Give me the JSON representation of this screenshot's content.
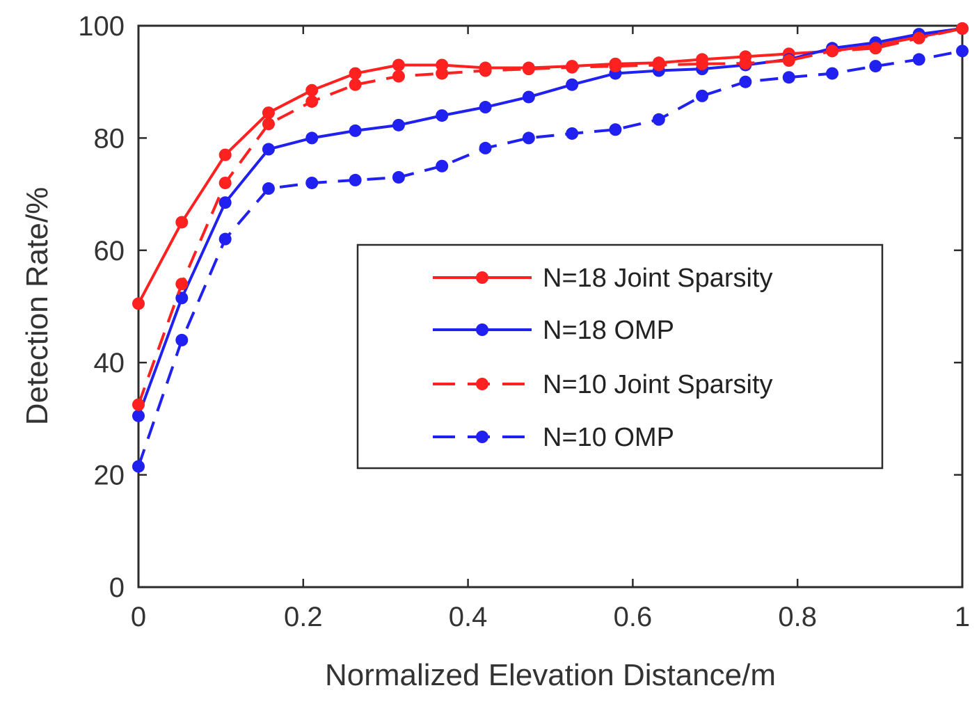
{
  "chart_data": {
    "type": "line",
    "xlabel": "Normalized Elevation Distance/m",
    "ylabel": "Detection Rate/%",
    "xlim": [
      0,
      1
    ],
    "ylim": [
      0,
      100
    ],
    "xticks": [
      "0",
      "0.2",
      "0.4",
      "0.6",
      "0.8",
      "1"
    ],
    "yticks": [
      "0",
      "20",
      "40",
      "60",
      "80",
      "100"
    ],
    "grid": false,
    "legend_position": "center-right",
    "x": [
      0,
      0.0526,
      0.1053,
      0.1579,
      0.2105,
      0.2632,
      0.3158,
      0.3684,
      0.4211,
      0.4737,
      0.5263,
      0.5789,
      0.6316,
      0.6842,
      0.7368,
      0.7895,
      0.8421,
      0.8947,
      0.9474,
      1.0
    ],
    "series": [
      {
        "name": "N=18 Joint Sparsity",
        "color": "#ff2020",
        "dashed": false,
        "values": [
          50.5,
          65,
          77,
          84.5,
          88.5,
          91.5,
          93,
          93,
          92.5,
          92.5,
          92.8,
          93.2,
          93.4,
          94,
          94.5,
          95,
          95.5,
          96.5,
          98,
          99.5
        ]
      },
      {
        "name": "N=18 OMP",
        "color": "#2020f0",
        "dashed": false,
        "values": [
          30.5,
          51.5,
          68.5,
          78,
          80,
          81.3,
          82.3,
          84,
          85.5,
          87.3,
          89.5,
          91.5,
          92,
          92.3,
          93,
          94,
          96,
          97,
          98.5,
          99.5
        ]
      },
      {
        "name": "N=10 Joint Sparsity",
        "color": "#ff2020",
        "dashed": true,
        "values": [
          32.5,
          54,
          72,
          82.5,
          86.5,
          89.5,
          91,
          91.5,
          92,
          92.3,
          92.6,
          92.8,
          93,
          93.2,
          93.3,
          93.8,
          95.5,
          96,
          97.8,
          99.5
        ]
      },
      {
        "name": "N=10 OMP",
        "color": "#2020f0",
        "dashed": true,
        "values": [
          21.5,
          44,
          62,
          71,
          72,
          72.5,
          73,
          75,
          78.2,
          80,
          80.8,
          81.5,
          83.3,
          87.5,
          90,
          90.8,
          91.5,
          92.8,
          94,
          95.5
        ]
      }
    ]
  }
}
